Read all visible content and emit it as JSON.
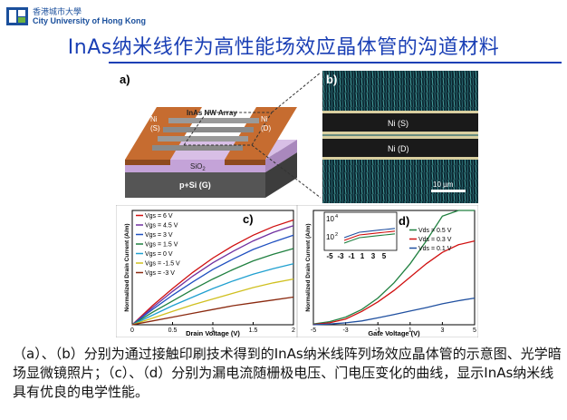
{
  "header": {
    "logo_cn": "香港城市大學",
    "logo_en": "City University of Hong Kong",
    "logo_icon": "cityu-logo-icon"
  },
  "title": "InAs纳米线作为高性能场效应晶体管的沟道材料",
  "panel_a": {
    "label": "a)",
    "ni_left": [
      "Ni",
      "(S)"
    ],
    "ni_right": [
      "Ni",
      "(D)"
    ],
    "nw_array": "InAs NW Array",
    "sio2": "SiO",
    "sio2_sub": "2",
    "substrate": "p+Si (G)"
  },
  "panel_b": {
    "label": "b)",
    "ni_s": "Ni (S)",
    "ni_d": "Ni (D)",
    "scale_bar": "10 µm"
  },
  "colors": {
    "ni_pad": "#b8602a",
    "sio2": "#c4a3d8",
    "substrate": "#555555",
    "title_blue": "#1a3fb5"
  },
  "chart_data": [
    {
      "type": "line",
      "panel": "c)",
      "xlabel": "Drain Voltage (V)",
      "ylabel": "Normalized Drain Current (A/m)",
      "xlim": [
        0,
        2
      ],
      "xticks": [
        "0",
        "0.5",
        "1",
        "1.5",
        "2"
      ],
      "x": [
        0,
        0.25,
        0.5,
        0.75,
        1.0,
        1.25,
        1.5,
        1.75,
        2.0
      ],
      "ylim": [
        0,
        1.2
      ],
      "series": [
        {
          "name": "Vgs = 6 V",
          "color": "#d01010",
          "values": [
            0,
            0.2,
            0.38,
            0.55,
            0.7,
            0.83,
            0.94,
            1.03,
            1.1
          ]
        },
        {
          "name": "Vgs = 4.5 V",
          "color": "#7030a0",
          "values": [
            0,
            0.18,
            0.35,
            0.51,
            0.65,
            0.77,
            0.88,
            0.97,
            1.04
          ]
        },
        {
          "name": "Vgs = 3 V",
          "color": "#2050c0",
          "values": [
            0,
            0.16,
            0.31,
            0.45,
            0.58,
            0.69,
            0.79,
            0.87,
            0.94
          ]
        },
        {
          "name": "Vgs = 1.5 V",
          "color": "#208040",
          "values": [
            0,
            0.13,
            0.25,
            0.37,
            0.48,
            0.58,
            0.67,
            0.74,
            0.8
          ]
        },
        {
          "name": "Vgs = 0 V",
          "color": "#20a0d0",
          "values": [
            0,
            0.1,
            0.2,
            0.29,
            0.38,
            0.46,
            0.53,
            0.59,
            0.64
          ]
        },
        {
          "name": "Vgs = -1.5 V",
          "color": "#d0c020",
          "values": [
            0,
            0.07,
            0.14,
            0.21,
            0.27,
            0.33,
            0.39,
            0.44,
            0.48
          ]
        },
        {
          "name": "Vgs = -3 V",
          "color": "#8b2a10",
          "values": [
            0,
            0.04,
            0.08,
            0.12,
            0.16,
            0.2,
            0.23,
            0.26,
            0.29
          ]
        }
      ]
    },
    {
      "type": "line",
      "panel": "d)",
      "xlabel": "Gate Voltage (V)",
      "ylabel": "Normalized Drain Current (A/m)",
      "xlim": [
        -5,
        5
      ],
      "xticks": [
        "-5",
        "-3",
        "-1",
        "1",
        "3",
        "5"
      ],
      "x": [
        -5,
        -4,
        -3,
        -2,
        -1,
        0,
        1,
        2,
        3,
        4,
        5
      ],
      "ylim": [
        0,
        300
      ],
      "series": [
        {
          "name": "Vds = 0.5 V",
          "color": "#208040",
          "values": [
            2,
            8,
            20,
            40,
            70,
            110,
            160,
            220,
            285,
            300,
            300
          ]
        },
        {
          "name": "Vds = 0.3 V",
          "color": "#d01010",
          "values": [
            1,
            5,
            15,
            35,
            60,
            90,
            125,
            160,
            190,
            210,
            220
          ]
        },
        {
          "name": "Vds = 0.1 V",
          "color": "#2050a0",
          "values": [
            0,
            2,
            5,
            10,
            18,
            27,
            36,
            45,
            55,
            63,
            70
          ]
        }
      ],
      "inset": {
        "yticks": [
          "10",
          "10"
        ],
        "ytick_exp": [
          "4",
          "2"
        ],
        "xticks": [
          "-5",
          "-3",
          "-1",
          "1",
          "3",
          "5"
        ]
      }
    }
  ],
  "caption": "（a）、（b）分别为通过接触印刷技术得到的InAs纳米线阵列场效应晶体管的示意图、光学暗场显微镜照片；（c）、（d）分别为漏电流随栅极电压、门电压变化的曲线，显示InAs纳米线具有优良的电学性能。"
}
